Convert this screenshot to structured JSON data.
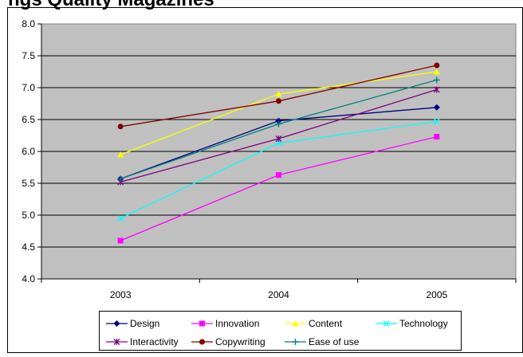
{
  "chart_data": {
    "type": "line",
    "title": "ngs Quality Magazines",
    "xlabel": "",
    "ylabel": "",
    "categories": [
      "2003",
      "2004",
      "2005"
    ],
    "ylim": [
      4.0,
      8.0
    ],
    "yticks": [
      "4.0",
      "4.5",
      "5.0",
      "5.5",
      "6.0",
      "6.5",
      "7.0",
      "7.5",
      "8.0"
    ],
    "grid": true,
    "legend_position": "bottom",
    "series": [
      {
        "name": "Design",
        "values": [
          5.57,
          6.48,
          6.69
        ],
        "color": "#000080",
        "marker": "diamond"
      },
      {
        "name": "Innovation",
        "values": [
          4.6,
          5.63,
          6.23
        ],
        "color": "#ff00ff",
        "marker": "square"
      },
      {
        "name": "Content",
        "values": [
          5.95,
          6.9,
          7.25
        ],
        "color": "#ffff00",
        "marker": "triangle"
      },
      {
        "name": "Technology",
        "values": [
          4.95,
          6.13,
          6.47
        ],
        "color": "#00ffff",
        "marker": "x"
      },
      {
        "name": "Interactivity",
        "values": [
          5.52,
          6.2,
          6.97
        ],
        "color": "#800080",
        "marker": "star"
      },
      {
        "name": "Copywriting",
        "values": [
          6.39,
          6.79,
          7.35
        ],
        "color": "#800000",
        "marker": "circle"
      },
      {
        "name": "Ease of use",
        "values": [
          5.57,
          6.43,
          7.12
        ],
        "color": "#008080",
        "marker": "plus"
      }
    ]
  }
}
